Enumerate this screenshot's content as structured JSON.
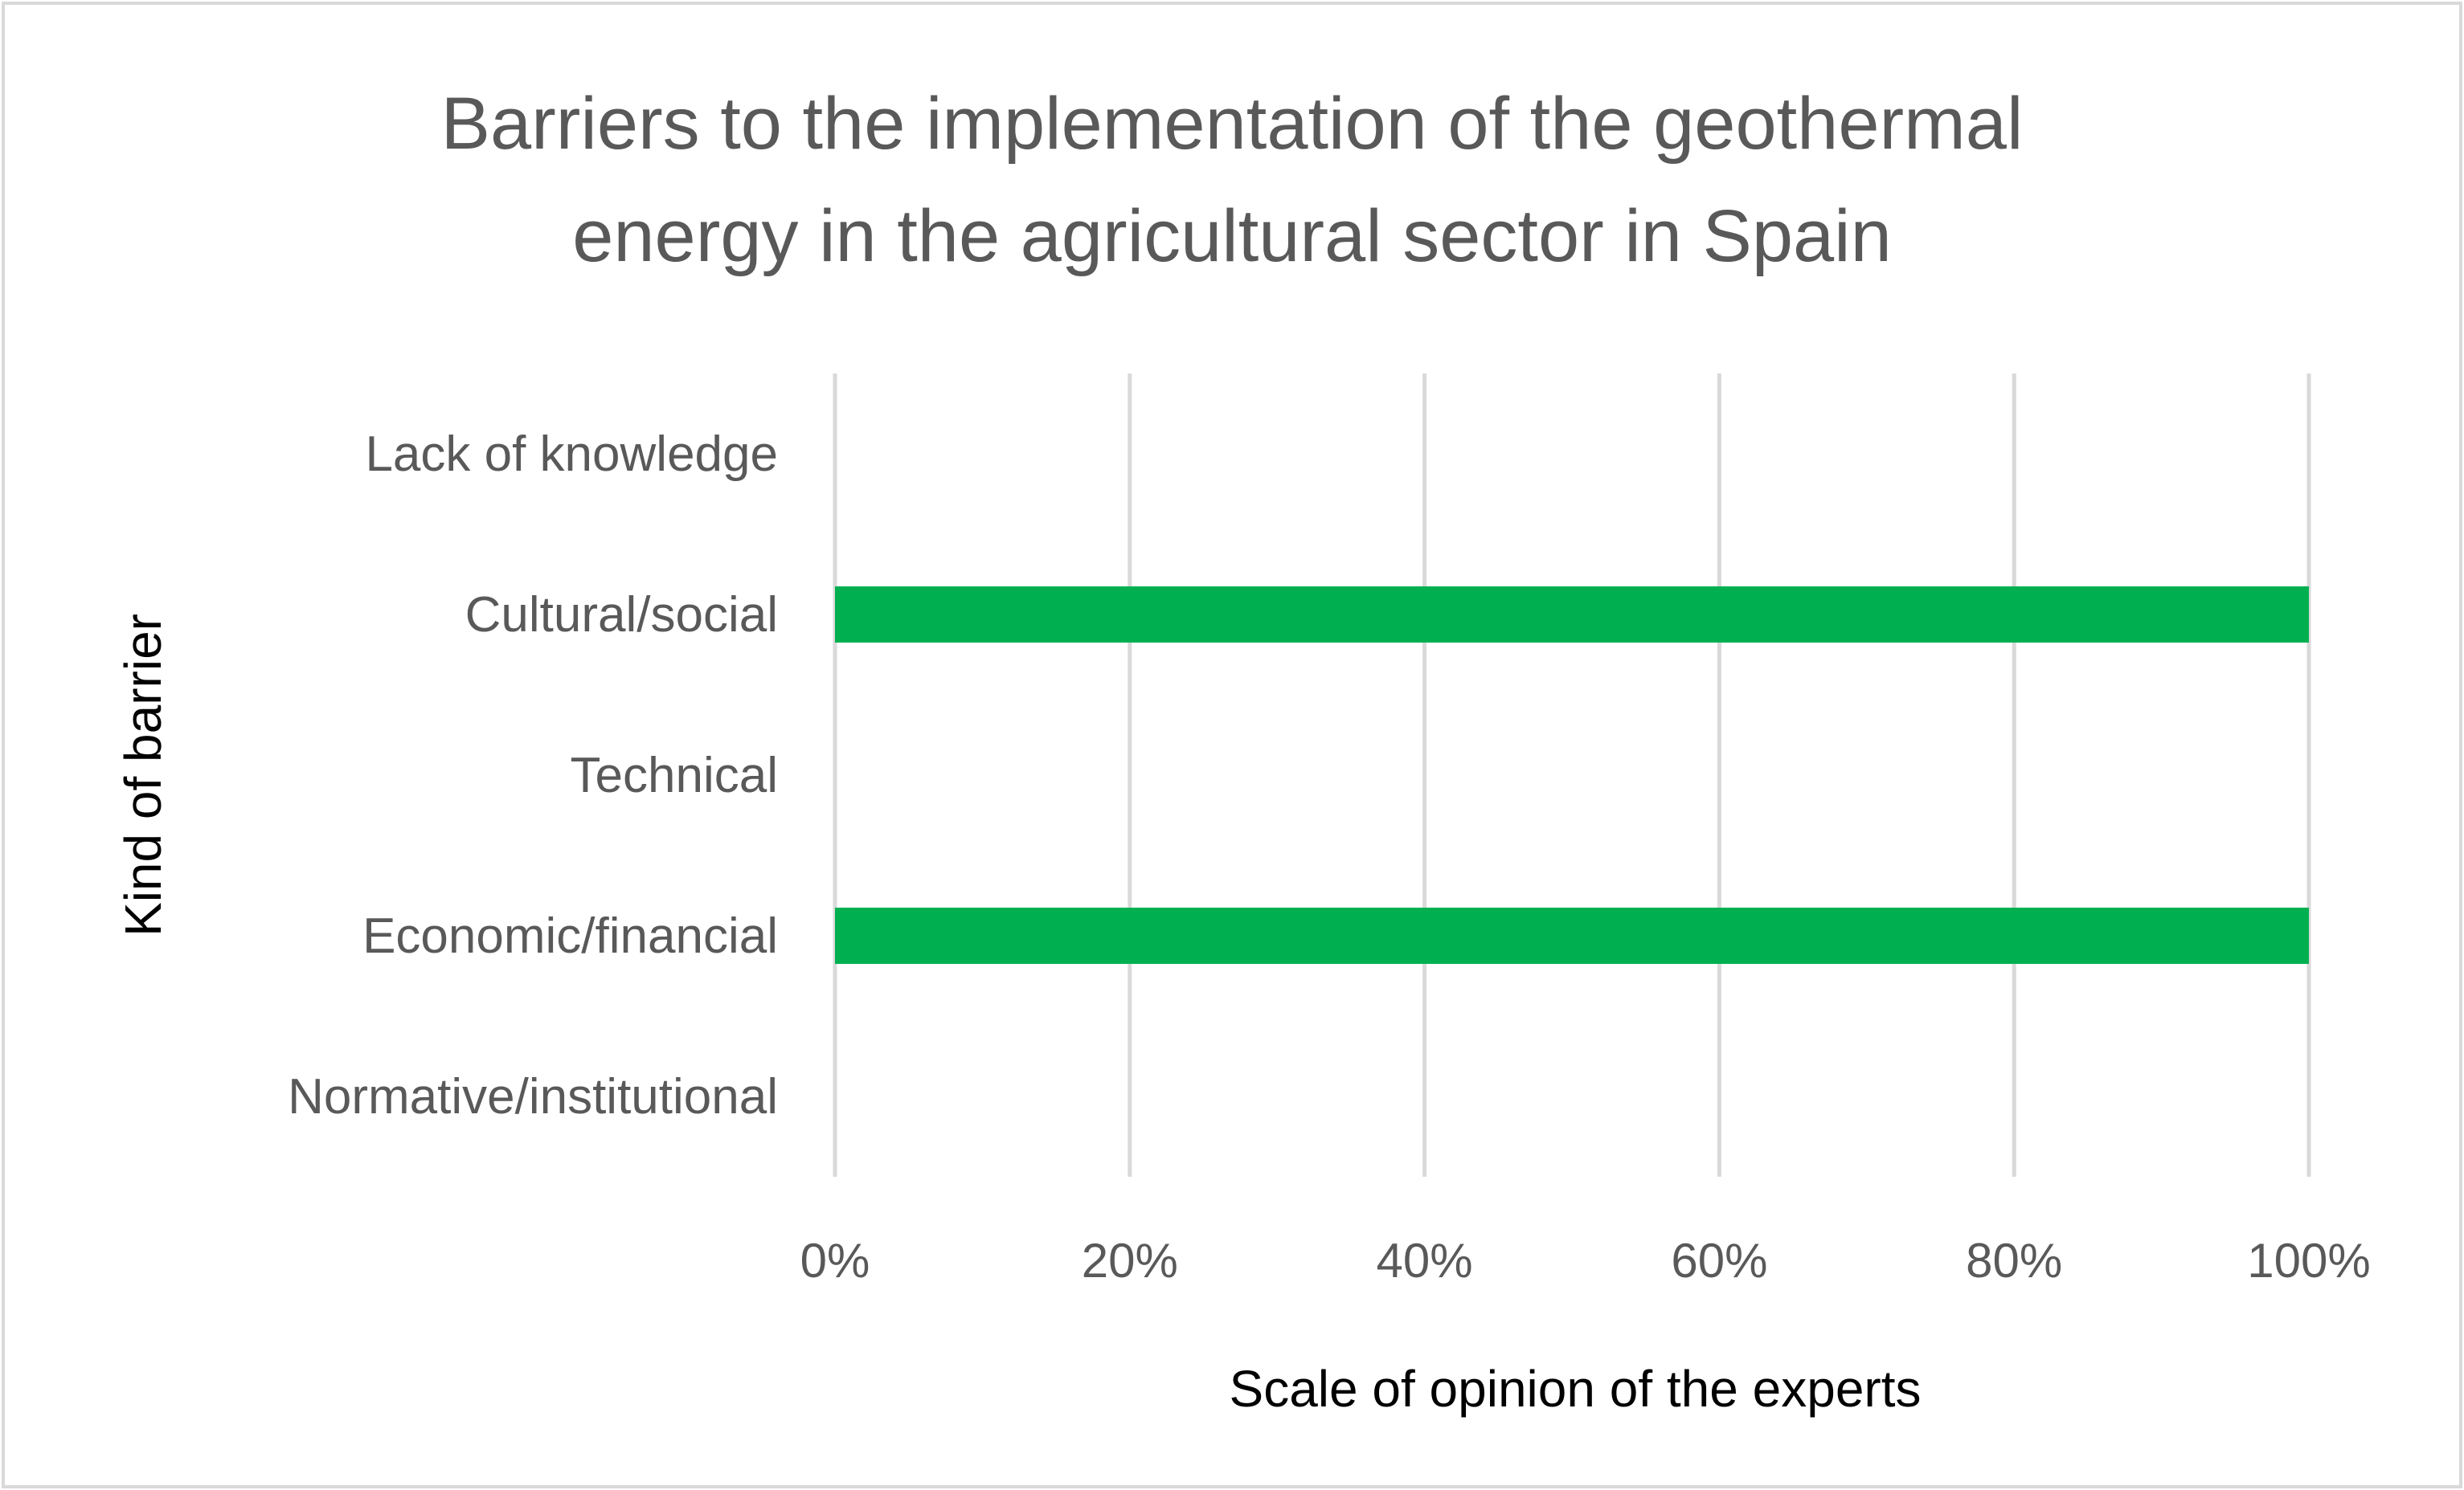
{
  "chart_data": {
    "type": "bar",
    "orientation": "horizontal",
    "title": [
      "Barriers to the implementation of the geothermal",
      "energy in the agricultural sector in Spain"
    ],
    "xlabel": "Scale of opinion of the experts",
    "ylabel": "Kind of barrier",
    "categories": [
      "Lack of knowledge",
      "Cultural/social",
      "Technical",
      "Economic/financial",
      "Normative/institutional"
    ],
    "series": [
      {
        "values": [
          0,
          100,
          0,
          100,
          0
        ],
        "color": "#00B050"
      }
    ],
    "xlim": [
      0,
      100
    ],
    "x_ticks": [
      "0%",
      "20%",
      "40%",
      "60%",
      "80%",
      "100%"
    ],
    "grid": "vertical",
    "legend": "none"
  }
}
